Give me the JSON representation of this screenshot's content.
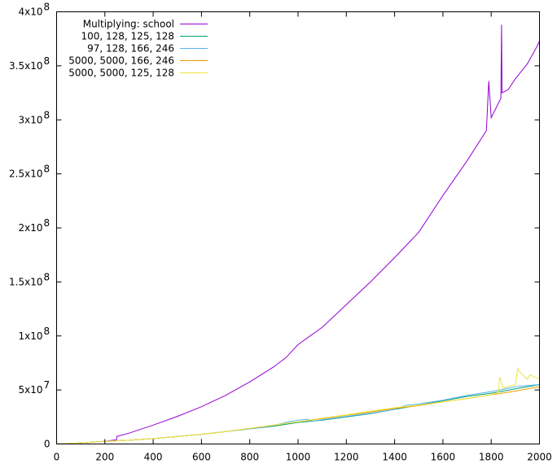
{
  "chart_data": {
    "type": "line",
    "title": "",
    "xlabel": "",
    "ylabel": "",
    "xlim": [
      0,
      2000
    ],
    "ylim": [
      0,
      400000000
    ],
    "grid": false,
    "legend_position": "top-left",
    "x_ticks": [
      {
        "value": 0,
        "label": "0"
      },
      {
        "value": 200,
        "label": "200"
      },
      {
        "value": 400,
        "label": "400"
      },
      {
        "value": 600,
        "label": "600"
      },
      {
        "value": 800,
        "label": "800"
      },
      {
        "value": 1000,
        "label": "1000"
      },
      {
        "value": 1200,
        "label": "1200"
      },
      {
        "value": 1400,
        "label": "1400"
      },
      {
        "value": 1600,
        "label": "1600"
      },
      {
        "value": 1800,
        "label": "1800"
      },
      {
        "value": 2000,
        "label": "2000"
      }
    ],
    "y_ticks": [
      {
        "value": 0,
        "mantissa": "0",
        "exponent": ""
      },
      {
        "value": 50000000,
        "mantissa": "5x10",
        "exponent": "7"
      },
      {
        "value": 100000000,
        "mantissa": "1x10",
        "exponent": "8"
      },
      {
        "value": 150000000,
        "mantissa": "1.5x10",
        "exponent": "8"
      },
      {
        "value": 200000000,
        "mantissa": "2x10",
        "exponent": "8"
      },
      {
        "value": 250000000,
        "mantissa": "2.5x10",
        "exponent": "8"
      },
      {
        "value": 300000000,
        "mantissa": "3x10",
        "exponent": "8"
      },
      {
        "value": 350000000,
        "mantissa": "3.5x10",
        "exponent": "8"
      },
      {
        "value": 400000000,
        "mantissa": "4x10",
        "exponent": "8"
      }
    ],
    "series": [
      {
        "name": "Multiplying: school",
        "color": "#9400d3",
        "x": [
          0,
          100,
          200,
          249,
          250,
          300,
          400,
          500,
          600,
          700,
          800,
          900,
          950,
          1000,
          1100,
          1200,
          1300,
          1400,
          1500,
          1600,
          1700,
          1780,
          1790,
          1800,
          1840,
          1843,
          1845,
          1870,
          1900,
          1950,
          1990,
          2000
        ],
        "y": [
          0,
          1000000,
          2500000,
          4000000,
          7000000,
          10000000,
          17500000,
          25500000,
          34500000,
          45000000,
          57500000,
          71500000,
          80000000,
          92000000,
          108000000,
          129000000,
          150000000,
          172500000,
          196000000,
          230000000,
          262000000,
          290000000,
          336000000,
          302000000,
          320000000,
          388000000,
          325000000,
          328000000,
          338000000,
          352000000,
          368000000,
          373000000
        ]
      },
      {
        "name": "100, 128, 125, 128",
        "color": "#009e73",
        "x": [
          0,
          100,
          200,
          300,
          400,
          500,
          600,
          700,
          800,
          900,
          1000,
          1050,
          1100,
          1200,
          1300,
          1400,
          1500,
          1600,
          1700,
          1800,
          1900,
          2000
        ],
        "y": [
          0,
          1000000,
          2500000,
          3500000,
          5000000,
          7000000,
          9000000,
          11500000,
          14000000,
          16500000,
          20000000,
          21000000,
          22000000,
          25000000,
          28000000,
          32000000,
          36000000,
          40000000,
          44000000,
          47000000,
          51000000,
          55000000
        ]
      },
      {
        "name": "97, 128, 166, 246",
        "color": "#56b4e9",
        "x": [
          0,
          100,
          200,
          300,
          400,
          500,
          600,
          700,
          800,
          900,
          950,
          1000,
          1040,
          1060,
          1100,
          1200,
          1300,
          1400,
          1450,
          1500,
          1600,
          1700,
          1800,
          1900,
          2000
        ],
        "y": [
          0,
          1000000,
          2500000,
          3500000,
          5000000,
          7000000,
          9000000,
          11500000,
          14000000,
          17000000,
          20000000,
          22000000,
          23000000,
          21000000,
          22500000,
          25500000,
          28500000,
          32000000,
          36000000,
          37000000,
          40500000,
          45000000,
          48500000,
          53000000,
          55000000
        ]
      },
      {
        "name": "5000, 5000, 166, 246",
        "color": "#e69f00",
        "x": [
          0,
          100,
          200,
          300,
          400,
          500,
          600,
          700,
          800,
          900,
          1000,
          1100,
          1200,
          1300,
          1400,
          1500,
          1600,
          1700,
          1800,
          1900,
          2000
        ],
        "y": [
          0,
          1000000,
          2500000,
          3500000,
          5000000,
          7000000,
          9000000,
          11500000,
          14500000,
          17500000,
          20500000,
          23500000,
          26500000,
          29500000,
          33000000,
          35500000,
          39000000,
          42000000,
          45500000,
          49000000,
          53000000
        ]
      },
      {
        "name": "5000, 5000, 125, 128",
        "color": "#f0e442",
        "x": [
          0,
          100,
          200,
          300,
          400,
          500,
          600,
          700,
          800,
          900,
          1000,
          1100,
          1200,
          1300,
          1400,
          1500,
          1600,
          1700,
          1800,
          1830,
          1835,
          1850,
          1900,
          1910,
          1920,
          1950,
          1960,
          2000
        ],
        "y": [
          0,
          1000000,
          2500000,
          3500000,
          5000000,
          7000000,
          9000000,
          11500000,
          14500000,
          17500000,
          20500000,
          24000000,
          27000000,
          30500000,
          33500000,
          36000000,
          39000000,
          42000000,
          45500000,
          48000000,
          62000000,
          52000000,
          55000000,
          70000000,
          66000000,
          60000000,
          64000000,
          60000000
        ]
      }
    ]
  }
}
